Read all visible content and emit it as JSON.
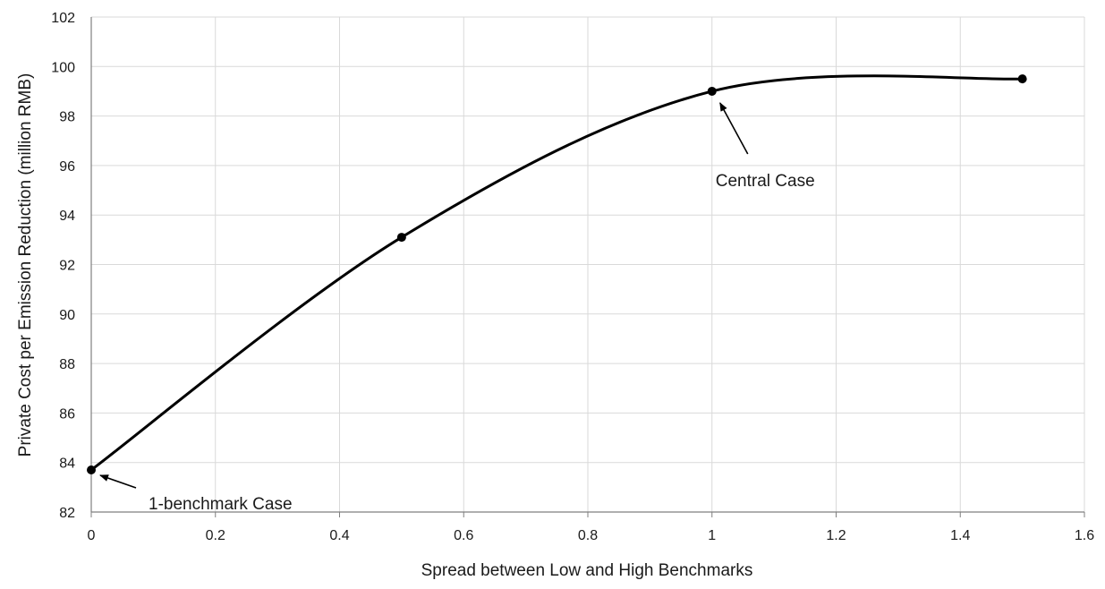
{
  "chart_data": {
    "type": "line",
    "title": "",
    "xlabel": "Spread between Low and High Benchmarks",
    "ylabel": "Private Cost per Emission Reduction (million RMB)",
    "xlim": [
      0,
      1.6
    ],
    "ylim": [
      82,
      102
    ],
    "xticks": [
      "0",
      "0.2",
      "0.4",
      "0.6",
      "0.8",
      "1",
      "1.2",
      "1.4",
      "1.6"
    ],
    "yticks": [
      "82",
      "84",
      "86",
      "88",
      "90",
      "92",
      "94",
      "96",
      "98",
      "100",
      "102"
    ],
    "grid": true,
    "smooth": true,
    "series": [
      {
        "x": [
          0,
          0.5,
          1.0,
          1.5
        ],
        "y": [
          83.7,
          93.1,
          99.0,
          99.5
        ],
        "color": "#000000"
      }
    ],
    "annotations": [
      {
        "text": "1-benchmark Case",
        "x": 0,
        "y": 83.7
      },
      {
        "text": "Central Case",
        "x": 1.0,
        "y": 99.0
      }
    ]
  }
}
